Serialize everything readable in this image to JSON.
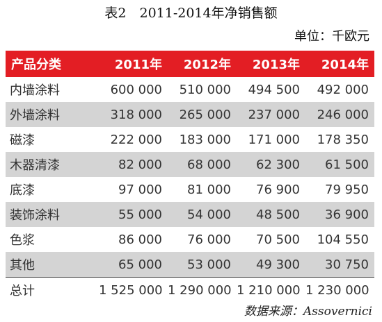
{
  "title": "表2　2011-2014年净销售额",
  "unit": "单位：千欧元",
  "source": "数据来源：Assovernici",
  "colors": {
    "header_bg": "#e31e24",
    "header_text": "#ffffff",
    "stripe_bg": "#d4d4d4"
  },
  "table": {
    "headers": [
      "产品分类",
      "2011年",
      "2012年",
      "2013年",
      "2014年"
    ],
    "rows": [
      {
        "category": "内墙涂料",
        "values": [
          "600 000",
          "510 000",
          "494 500",
          "492 000"
        ]
      },
      {
        "category": "外墙涂料",
        "values": [
          "318 000",
          "265 000",
          "237 000",
          "246 000"
        ]
      },
      {
        "category": "磁漆",
        "values": [
          "222 000",
          "183 000",
          "171 000",
          "178 350"
        ]
      },
      {
        "category": "木器清漆",
        "values": [
          "82 000",
          "68 000",
          "62 300",
          "61 500"
        ]
      },
      {
        "category": "底漆",
        "values": [
          "97 000",
          "81 000",
          "76 900",
          "79 950"
        ]
      },
      {
        "category": "装饰涂料",
        "values": [
          "55 000",
          "54 000",
          "48 500",
          "36 900"
        ]
      },
      {
        "category": "色浆",
        "values": [
          "86 000",
          "76 000",
          "70 500",
          "104 550"
        ]
      },
      {
        "category": "其他",
        "values": [
          "65 000",
          "53 000",
          "49 300",
          "30 750"
        ]
      }
    ],
    "total": {
      "category": "总计",
      "values": [
        "1 525 000",
        "1 290 000",
        "1 210 000",
        "1 230 000"
      ]
    }
  }
}
